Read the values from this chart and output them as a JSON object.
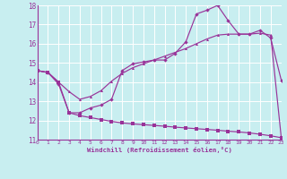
{
  "xlabel": "Windchill (Refroidissement éolien,°C)",
  "xlim": [
    0,
    23
  ],
  "ylim": [
    11,
    18
  ],
  "xticks": [
    0,
    1,
    2,
    3,
    4,
    5,
    6,
    7,
    8,
    9,
    10,
    11,
    12,
    13,
    14,
    15,
    16,
    17,
    18,
    19,
    20,
    21,
    22,
    23
  ],
  "yticks": [
    11,
    12,
    13,
    14,
    15,
    16,
    17,
    18
  ],
  "bg_color": "#c8eef0",
  "grid_color": "#ffffff",
  "line_color": "#993399",
  "curve1_x": [
    0,
    1,
    2,
    3,
    4,
    5,
    6,
    7,
    8,
    9,
    10,
    11,
    12,
    13,
    14,
    15,
    16,
    17,
    18,
    19,
    20,
    21,
    22,
    23
  ],
  "curve1_y": [
    14.6,
    14.5,
    13.9,
    12.4,
    12.4,
    12.65,
    12.8,
    13.1,
    14.6,
    14.95,
    15.05,
    15.15,
    15.15,
    15.5,
    16.1,
    17.55,
    17.75,
    18.0,
    17.2,
    16.5,
    16.5,
    16.7,
    16.3,
    14.1
  ],
  "curve2_x": [
    0,
    1,
    2,
    3,
    4,
    5,
    6,
    7,
    8,
    9,
    10,
    11,
    12,
    13,
    14,
    15,
    16,
    17,
    18,
    19,
    20,
    21,
    22,
    23
  ],
  "curve2_y": [
    14.6,
    14.5,
    14.0,
    13.5,
    13.1,
    13.25,
    13.55,
    14.05,
    14.45,
    14.75,
    14.95,
    15.15,
    15.35,
    15.55,
    15.75,
    16.0,
    16.25,
    16.45,
    16.5,
    16.5,
    16.5,
    16.55,
    16.45,
    11.1
  ],
  "curve3_x": [
    0,
    1,
    2,
    3,
    4,
    5,
    6,
    7,
    8,
    9,
    10,
    11,
    12,
    13,
    14,
    15,
    16,
    17,
    18,
    19,
    20,
    21,
    22,
    23
  ],
  "curve3_y": [
    14.6,
    14.5,
    14.0,
    12.4,
    12.25,
    12.15,
    12.05,
    11.95,
    11.87,
    11.82,
    11.78,
    11.74,
    11.7,
    11.65,
    11.61,
    11.57,
    11.53,
    11.49,
    11.44,
    11.4,
    11.35,
    11.28,
    11.2,
    11.1
  ]
}
